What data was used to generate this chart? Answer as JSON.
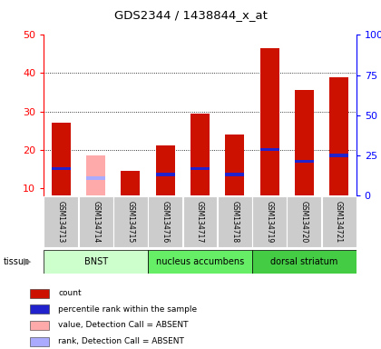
{
  "title": "GDS2344 / 1438844_x_at",
  "samples": [
    "GSM134713",
    "GSM134714",
    "GSM134715",
    "GSM134716",
    "GSM134717",
    "GSM134718",
    "GSM134719",
    "GSM134720",
    "GSM134721"
  ],
  "count_values": [
    27,
    0,
    14.5,
    21,
    29.5,
    24,
    46.5,
    35.5,
    39
  ],
  "absent_count_values": [
    0,
    18.5,
    0,
    0,
    0,
    0,
    0,
    0,
    0
  ],
  "percentile_rank": [
    15,
    0,
    0,
    13.5,
    15,
    13.5,
    20,
    17,
    18.5
  ],
  "absent_rank": [
    0,
    12.5,
    0,
    0,
    0,
    0,
    0,
    0,
    0
  ],
  "tissues": [
    {
      "label": "BNST",
      "start": 0,
      "end": 3
    },
    {
      "label": "nucleus accumbens",
      "start": 3,
      "end": 6
    },
    {
      "label": "dorsal striatum",
      "start": 6,
      "end": 9
    }
  ],
  "tissue_colors": [
    "#ccffcc",
    "#66ee66",
    "#44cc44"
  ],
  "ylim_left": [
    8,
    50
  ],
  "ylim_right": [
    0,
    100
  ],
  "yticks_left": [
    10,
    20,
    30,
    40,
    50
  ],
  "ytick_labels_left": [
    "10",
    "20",
    "30",
    "40",
    "50"
  ],
  "yticks_right": [
    0,
    25,
    50,
    75,
    100
  ],
  "ytick_labels_right": [
    "0",
    "25",
    "50",
    "75",
    "100%"
  ],
  "color_count": "#cc1100",
  "color_absent_count": "#ffaaaa",
  "color_rank": "#2222cc",
  "color_absent_rank": "#aaaaff",
  "bar_width": 0.55,
  "sample_bg": "#cccccc",
  "plot_bg": "#ffffff",
  "legend_items": [
    {
      "color": "#cc1100",
      "label": "count"
    },
    {
      "color": "#2222cc",
      "label": "percentile rank within the sample"
    },
    {
      "color": "#ffaaaa",
      "label": "value, Detection Call = ABSENT"
    },
    {
      "color": "#aaaaff",
      "label": "rank, Detection Call = ABSENT"
    }
  ]
}
